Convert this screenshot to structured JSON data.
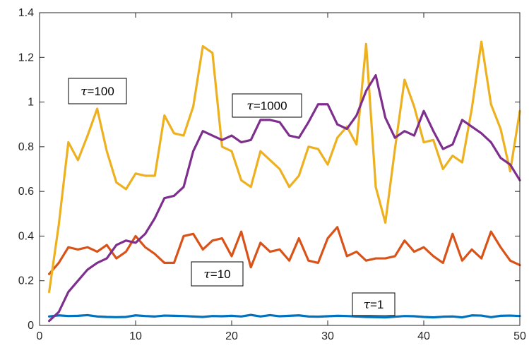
{
  "chart_data": {
    "type": "line",
    "title": "",
    "xlabel": "",
    "ylabel": "",
    "xlim": [
      0,
      50
    ],
    "ylim": [
      0,
      1.4
    ],
    "xticks": [
      "0",
      "10",
      "20",
      "30",
      "40",
      "50"
    ],
    "yticks": [
      "0",
      "0.2",
      "0.4",
      "0.6",
      "0.8",
      "1",
      "1.2",
      "1.4"
    ],
    "x": [
      1,
      2,
      3,
      4,
      5,
      6,
      7,
      8,
      9,
      10,
      11,
      12,
      13,
      14,
      15,
      16,
      17,
      18,
      19,
      20,
      21,
      22,
      23,
      24,
      25,
      26,
      27,
      28,
      29,
      30,
      31,
      32,
      33,
      34,
      35,
      36,
      37,
      38,
      39,
      40,
      41,
      42,
      43,
      44,
      45,
      46,
      47,
      48,
      49,
      50
    ],
    "series": [
      {
        "label": "τ=1",
        "color": "#0072BD",
        "values": [
          0.04,
          0.045,
          0.042,
          0.043,
          0.046,
          0.04,
          0.038,
          0.037,
          0.038,
          0.045,
          0.042,
          0.04,
          0.044,
          0.043,
          0.042,
          0.04,
          0.038,
          0.042,
          0.041,
          0.043,
          0.04,
          0.047,
          0.04,
          0.046,
          0.041,
          0.043,
          0.045,
          0.04,
          0.039,
          0.041,
          0.043,
          0.042,
          0.04,
          0.038,
          0.037,
          0.036,
          0.039,
          0.042,
          0.041,
          0.038,
          0.036,
          0.039,
          0.04,
          0.036,
          0.045,
          0.044,
          0.037,
          0.043,
          0.044,
          0.042
        ]
      },
      {
        "label": "τ=10",
        "color": "#D95319",
        "values": [
          0.23,
          0.28,
          0.35,
          0.34,
          0.35,
          0.33,
          0.36,
          0.3,
          0.33,
          0.4,
          0.35,
          0.32,
          0.28,
          0.28,
          0.4,
          0.41,
          0.34,
          0.38,
          0.39,
          0.31,
          0.42,
          0.26,
          0.37,
          0.33,
          0.34,
          0.29,
          0.39,
          0.29,
          0.28,
          0.39,
          0.44,
          0.31,
          0.33,
          0.29,
          0.3,
          0.3,
          0.31,
          0.38,
          0.33,
          0.35,
          0.31,
          0.28,
          0.41,
          0.29,
          0.34,
          0.3,
          0.42,
          0.35,
          0.29,
          0.27
        ]
      },
      {
        "label": "τ=100",
        "color": "#EDB120",
        "values": [
          0.15,
          0.45,
          0.82,
          0.74,
          0.85,
          0.97,
          0.78,
          0.64,
          0.61,
          0.68,
          0.67,
          0.67,
          0.94,
          0.86,
          0.85,
          0.98,
          1.25,
          1.22,
          0.8,
          0.78,
          0.65,
          0.62,
          0.78,
          0.74,
          0.7,
          0.62,
          0.67,
          0.8,
          0.79,
          0.72,
          0.84,
          0.89,
          0.81,
          1.26,
          0.62,
          0.46,
          0.79,
          1.1,
          0.98,
          0.82,
          0.83,
          0.7,
          0.76,
          0.73,
          0.97,
          1.27,
          0.99,
          0.88,
          0.69,
          0.96
        ]
      },
      {
        "label": "τ=1000",
        "color": "#7E2F8E",
        "values": [
          0.02,
          0.06,
          0.15,
          0.2,
          0.25,
          0.28,
          0.3,
          0.36,
          0.38,
          0.37,
          0.41,
          0.48,
          0.57,
          0.58,
          0.62,
          0.78,
          0.87,
          0.85,
          0.83,
          0.85,
          0.82,
          0.83,
          0.92,
          0.92,
          0.91,
          0.85,
          0.84,
          0.91,
          0.99,
          0.99,
          0.9,
          0.88,
          0.94,
          1.05,
          1.12,
          0.93,
          0.84,
          0.87,
          0.85,
          0.96,
          0.87,
          0.79,
          0.81,
          0.92,
          0.89,
          0.86,
          0.82,
          0.75,
          0.72,
          0.65
        ]
      }
    ],
    "annotations": [
      {
        "tau": "τ",
        "rest": "=100",
        "series_label": "τ=100"
      },
      {
        "tau": "τ",
        "rest": "=1000",
        "series_label": "τ=1000"
      },
      {
        "tau": "τ",
        "rest": "=10",
        "series_label": "τ=10"
      },
      {
        "tau": "τ",
        "rest": "=1",
        "series_label": "τ=1"
      }
    ],
    "grid": false,
    "legend": "none"
  }
}
